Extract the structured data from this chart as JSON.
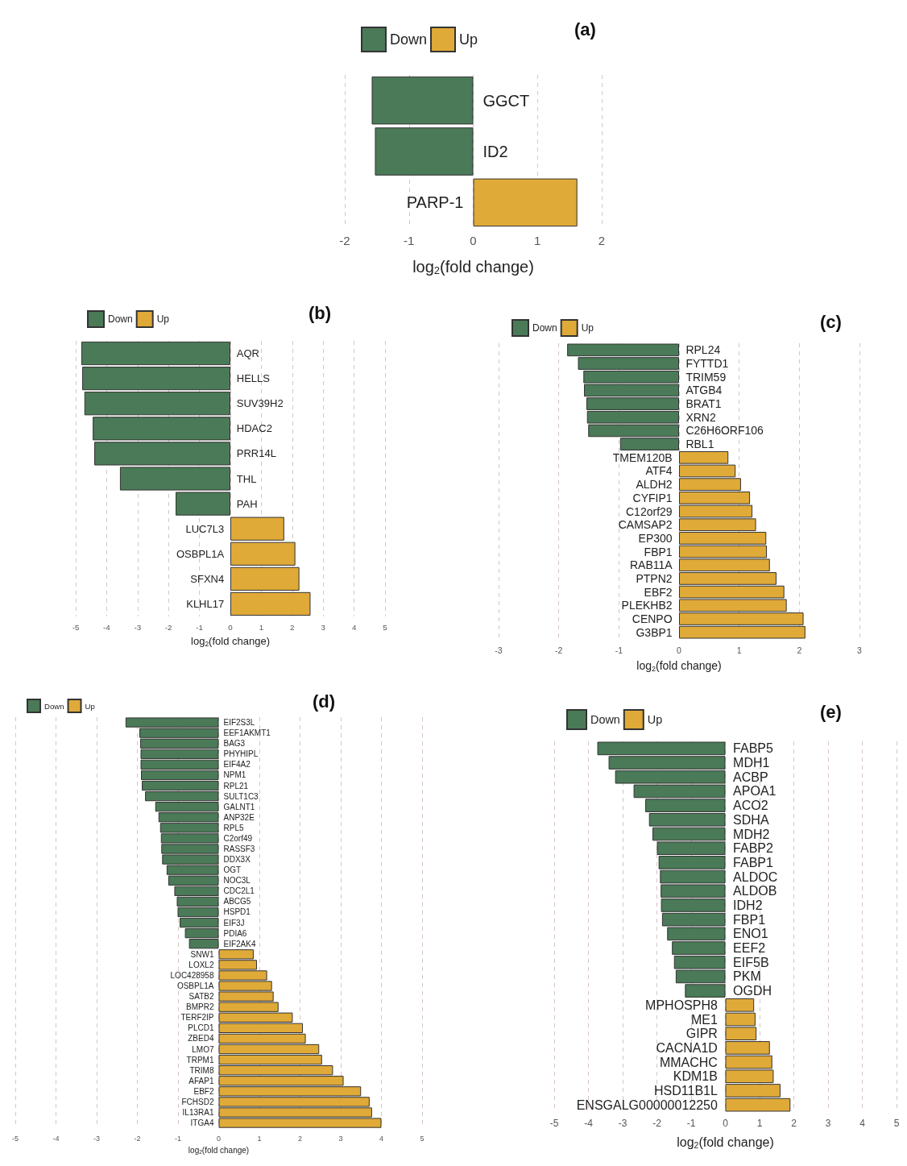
{
  "chart_data": [
    {
      "type": "bar",
      "orientation": "horizontal",
      "title": "(a)",
      "xlabel": "log$_{2}$(fold change)",
      "categories": [
        "GGCT",
        "ID2",
        "PARP-1"
      ],
      "series": [
        {
          "name": "Down",
          "color": "#4a7a57",
          "values": [
            -1.58,
            -1.53,
            null
          ]
        },
        {
          "name": "Up",
          "color": "#e0aa38",
          "values": [
            null,
            null,
            1.62
          ]
        }
      ],
      "xlim": [
        -2,
        2
      ],
      "xticks": [
        -2,
        -1,
        0,
        1,
        2
      ],
      "grid": "x",
      "legend": "top"
    },
    {
      "type": "bar",
      "orientation": "horizontal",
      "title": "(b)",
      "xlabel": "log$_{2}$(fold change)",
      "categories": [
        "AQR",
        "HELLS",
        "SUV39H2",
        "HDAC2",
        "PRR14L",
        "THL",
        "PAH",
        "LUC7L3",
        "OSBPL1A",
        "SFXN4",
        "KLHL17"
      ],
      "series": [
        {
          "name": "Down",
          "color": "#4a7a57",
          "values": [
            -4.82,
            -4.79,
            -4.72,
            -4.45,
            -4.4,
            -3.57,
            -1.77,
            null,
            null,
            null,
            null
          ]
        },
        {
          "name": "Up",
          "color": "#e0aa38",
          "values": [
            null,
            null,
            null,
            null,
            null,
            null,
            null,
            1.74,
            2.1,
            2.23,
            2.59
          ]
        }
      ],
      "xlim": [
        -5,
        5
      ],
      "xticks": [
        -5,
        -4,
        -3,
        -2,
        -1,
        0,
        1,
        2,
        3,
        4,
        5
      ],
      "grid": "x",
      "legend": "top left"
    },
    {
      "type": "bar",
      "orientation": "horizontal",
      "title": "(c)",
      "xlabel": "log$_{2}$(fold change)",
      "categories": [
        "RPL24",
        "FYTTD1",
        "TRIM59",
        "ATGB4",
        "BRAT1",
        "XRN2",
        "C26H6ORF106",
        "RBL1",
        "TMEM120B",
        "ATF4",
        "ALDH2",
        "CYFIP1",
        "C12orf29",
        "CAMSAP2",
        "EP300",
        "FBP1",
        "RAB11A",
        "PTPN2",
        "EBF2",
        "PLEKHB2",
        "CENPO",
        "G3BP1"
      ],
      "series": [
        {
          "name": "Down",
          "color": "#4a7a57",
          "values": [
            -1.86,
            -1.68,
            -1.59,
            -1.58,
            -1.54,
            -1.53,
            -1.51,
            -0.98,
            null,
            null,
            null,
            null,
            null,
            null,
            null,
            null,
            null,
            null,
            null,
            null,
            null,
            null
          ]
        },
        {
          "name": "Up",
          "color": "#e0aa38",
          "values": [
            null,
            null,
            null,
            null,
            null,
            null,
            null,
            null,
            0.82,
            0.94,
            1.03,
            1.18,
            1.22,
            1.28,
            1.45,
            1.46,
            1.51,
            1.62,
            1.75,
            1.79,
            2.07,
            2.1
          ]
        }
      ],
      "xlim": [
        -3,
        3
      ],
      "xticks": [
        -3,
        -2,
        -1,
        0,
        1,
        2,
        3
      ],
      "grid": "x",
      "legend": "top left"
    },
    {
      "type": "bar",
      "orientation": "horizontal",
      "title": "(d)",
      "xlabel": "log$_{2}$(fold change)",
      "categories": [
        "EIF2S3L",
        "EEF1AKMT1",
        "BAG3",
        "PHYHIPL",
        "EIF4A2",
        "NPM1",
        "RPL21",
        "SULT1C3",
        "GALNT1",
        "ANP32E",
        "RPL5",
        "C2orf49",
        "RASSF3",
        "DDX3X",
        "OGT",
        "NOC3L",
        "CDC2L1",
        "ABCG5",
        "HSPD1",
        "EIF3J",
        "PDIA6",
        "EIF2AK4",
        "SNW1",
        "LOXL2",
        "LOC428958",
        "OSBPL1A",
        "SATB2",
        "BMPR2",
        "TERF2IP",
        "PLCD1",
        "ZBED4",
        "LMO7",
        "TRPM1",
        "TRIM8",
        "AFAP1",
        "EBF2",
        "FCHSD2",
        "IL13RA1",
        "ITGA4"
      ],
      "series": [
        {
          "name": "Down",
          "color": "#4a7a57",
          "values": [
            -2.29,
            -1.95,
            -1.93,
            -1.92,
            -1.92,
            -1.91,
            -1.89,
            -1.81,
            -1.56,
            -1.48,
            -1.44,
            -1.42,
            -1.41,
            -1.39,
            -1.28,
            -1.24,
            -1.09,
            -1.03,
            -1.01,
            -0.96,
            -0.83,
            -0.73,
            null,
            null,
            null,
            null,
            null,
            null,
            null,
            null,
            null,
            null,
            null,
            null,
            null,
            null,
            null,
            null,
            null
          ]
        },
        {
          "name": "Up",
          "color": "#e0aa38",
          "values": [
            null,
            null,
            null,
            null,
            null,
            null,
            null,
            null,
            null,
            null,
            null,
            null,
            null,
            null,
            null,
            null,
            null,
            null,
            null,
            null,
            null,
            null,
            0.86,
            0.94,
            1.19,
            1.31,
            1.35,
            1.47,
            1.82,
            2.07,
            2.14,
            2.47,
            2.54,
            2.81,
            3.07,
            3.5,
            3.71,
            3.77,
            4.0
          ]
        }
      ],
      "xlim": [
        -5,
        5
      ],
      "xticks": [
        -5,
        -4,
        -3,
        -2,
        -1,
        0,
        1,
        2,
        3,
        4,
        5
      ],
      "grid": "x",
      "legend": "top left"
    },
    {
      "type": "bar",
      "orientation": "horizontal",
      "title": "(e)",
      "xlabel": "log$_{2}$(fold change)",
      "categories": [
        "FABP5",
        "MDH1",
        "ACBP",
        "APOA1",
        "ACO2",
        "SDHA",
        "MDH2",
        "FABP2",
        "FABP1",
        "ALDOC",
        "ALDOB",
        "IDH2",
        "FBP1",
        "ENO1",
        "EEF2",
        "EIF5B",
        "PKM",
        "OGDH",
        "MPHOSPH8",
        "ME1",
        "GIPR",
        "CACNA1D",
        "MMACHC",
        "KDM1B",
        "HSD11B1L",
        "ENSGALG00000012250"
      ],
      "series": [
        {
          "name": "Down",
          "color": "#4a7a57",
          "values": [
            -3.74,
            -3.41,
            -3.22,
            -2.68,
            -2.34,
            -2.23,
            -2.13,
            -2.0,
            -1.95,
            -1.91,
            -1.89,
            -1.88,
            -1.85,
            -1.7,
            -1.56,
            -1.5,
            -1.45,
            -1.18,
            null,
            null,
            null,
            null,
            null,
            null,
            null,
            null
          ]
        },
        {
          "name": "Up",
          "color": "#e0aa38",
          "values": [
            null,
            null,
            null,
            null,
            null,
            null,
            null,
            null,
            null,
            null,
            null,
            null,
            null,
            null,
            null,
            null,
            null,
            null,
            0.84,
            0.88,
            0.91,
            1.3,
            1.37,
            1.41,
            1.61,
            1.9
          ]
        }
      ],
      "xlim": [
        -5,
        5
      ],
      "xticks": [
        -5,
        -4,
        -3,
        -2,
        -1,
        0,
        1,
        2,
        3,
        4,
        5
      ],
      "grid": "x",
      "legend": "top left"
    }
  ]
}
